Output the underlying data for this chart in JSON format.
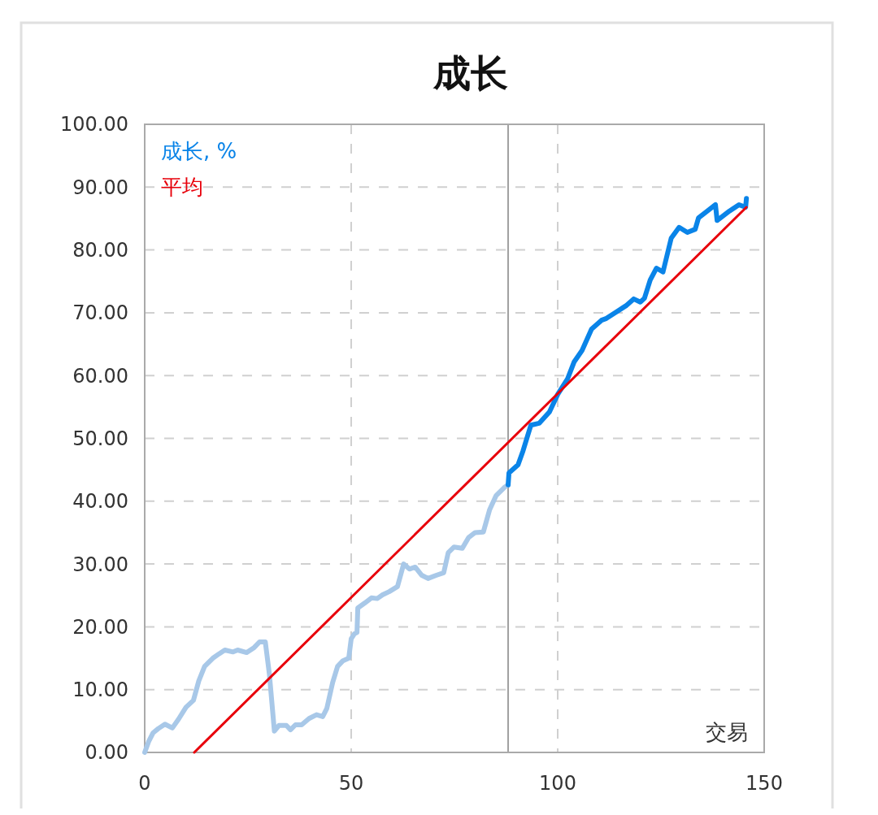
{
  "chart_data": {
    "type": "line",
    "title": "成长",
    "xlabel": "交易",
    "xlim": [
      0,
      150
    ],
    "xticks": [
      0,
      50,
      100,
      150
    ],
    "ylim": [
      0,
      100
    ],
    "yticks": [
      {
        "value": 0,
        "label": "0.00"
      },
      {
        "value": 10,
        "label": "10.00"
      },
      {
        "value": 20,
        "label": "20.00"
      },
      {
        "value": 30,
        "label": "30.00"
      },
      {
        "value": 40,
        "label": "40.00"
      },
      {
        "value": 50,
        "label": "50.00"
      },
      {
        "value": 60,
        "label": "60.00"
      },
      {
        "value": 70,
        "label": "70.00"
      },
      {
        "value": 80,
        "label": "80.00"
      },
      {
        "value": 90,
        "label": "90.00"
      },
      {
        "value": 100,
        "label": "100.00"
      }
    ],
    "grid": true,
    "legend": "top left",
    "marker": "none",
    "series": [
      {
        "color": "#a8c8e8",
        "x": [
          0,
          1,
          2,
          3.3,
          4.9,
          6.7,
          8.2,
          10,
          11.8,
          13.1,
          14.5,
          16.5,
          18,
          19.4,
          21.4,
          22.5,
          24.7,
          26.5,
          27.8,
          29.2,
          30.2,
          31.4,
          32.5,
          34.3,
          35.3,
          36.5,
          38,
          39.8,
          41.6,
          43.1,
          44.1,
          45.5,
          46.7,
          48,
          49.4,
          50,
          50.8,
          51.4,
          51.6,
          53.3,
          54.9,
          56.3,
          57.6,
          59.2,
          61.2,
          62.7,
          64.1,
          65.5,
          67.1,
          68.6,
          70.6,
          72.4,
          73.5,
          74.9,
          76.9,
          78.4,
          80,
          82,
          83.5,
          85.1,
          87.1,
          88
        ],
        "values": [
          0,
          1.8,
          3.1,
          3.8,
          4.5,
          3.9,
          5.3,
          7.2,
          8.3,
          11.4,
          13.7,
          15,
          15.7,
          16.3,
          16,
          16.3,
          15.9,
          16.7,
          17.6,
          17.6,
          12.4,
          3.4,
          4.3,
          4.3,
          3.6,
          4.4,
          4.4,
          5.4,
          6,
          5.7,
          7,
          11.1,
          13.7,
          14.6,
          15,
          18.1,
          18.9,
          19.1,
          23,
          23.8,
          24.6,
          24.5,
          25.1,
          25.6,
          26.4,
          30,
          29.2,
          29.5,
          28.2,
          27.7,
          28.2,
          28.6,
          31.8,
          32.7,
          32.5,
          34.2,
          35,
          35.1,
          38.6,
          40.9,
          42.2,
          42.6
        ]
      },
      {
        "name": "成长, %",
        "color": "#0a84e8",
        "x": [
          88,
          88.2,
          90.4,
          91.6,
          93.5,
          95.5,
          98,
          100,
          102.4,
          104,
          105.9,
          108.2,
          110.6,
          111.8,
          114.1,
          116.5,
          118.4,
          120,
          121,
          122.4,
          123.9,
          125.5,
          127.5,
          129.4,
          131.4,
          133.3,
          134.1,
          138.2,
          138.6,
          141.6,
          143.9,
          145.5,
          145.7
        ],
        "values": [
          42.6,
          44.5,
          45.8,
          48,
          52.1,
          52.4,
          54.2,
          57,
          59.5,
          62.2,
          64,
          67.4,
          68.8,
          69.1,
          70.1,
          71.1,
          72.2,
          71.7,
          72.3,
          75.2,
          77.1,
          76.5,
          81.9,
          83.6,
          82.8,
          83.3,
          85.1,
          87.2,
          84.7,
          86.2,
          87.2,
          86.8,
          88.2
        ]
      },
      {
        "name": "平均",
        "color": "#e8000b",
        "x": [
          12,
          145.7
        ],
        "values": [
          0,
          86.8
        ]
      }
    ],
    "ref_lines": [
      {
        "axis": "x",
        "value": 88,
        "color": "#a0a0a0"
      }
    ]
  }
}
